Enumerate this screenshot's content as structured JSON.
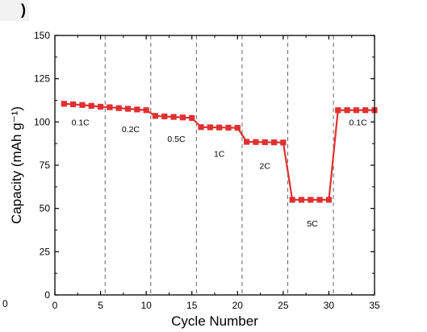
{
  "top_left_glyph": ")",
  "stray_label": "0",
  "chart_data": {
    "type": "line",
    "xlabel": "Cycle Number",
    "ylabel": "Capacity (mAh g⁻¹)",
    "xlim": [
      0,
      35
    ],
    "ylim": [
      0,
      150
    ],
    "xticks": [
      0,
      5,
      10,
      15,
      20,
      25,
      30,
      35
    ],
    "yticks": [
      0,
      25,
      50,
      75,
      100,
      125,
      150
    ],
    "grid": false,
    "dividers_at_x": [
      5.5,
      10.5,
      15.5,
      20.5,
      25.5,
      30.5
    ],
    "series": [
      {
        "color": "#e03030",
        "marker": "square",
        "x": [
          1,
          2,
          3,
          4,
          5,
          6,
          7,
          8,
          9,
          10,
          11,
          12,
          13,
          14,
          15,
          16,
          17,
          18,
          19,
          20,
          21,
          22,
          23,
          24,
          25,
          26,
          27,
          28,
          29,
          30,
          31,
          32,
          33,
          34,
          35
        ],
        "y": [
          110.5,
          110.2,
          109.8,
          109.3,
          108.8,
          108.5,
          108.0,
          107.6,
          107.2,
          106.8,
          103.5,
          103.2,
          102.9,
          102.6,
          102.3,
          97.0,
          96.9,
          96.8,
          96.7,
          96.6,
          88.5,
          88.4,
          88.3,
          88.2,
          88.1,
          55.0,
          55.0,
          55.0,
          55.0,
          55.0,
          106.8,
          106.8,
          106.8,
          106.8,
          106.8
        ]
      }
    ],
    "annotations": [
      {
        "text": "0.1C",
        "x": 2.8,
        "y": 98
      },
      {
        "text": "0.2C",
        "x": 8.3,
        "y": 94
      },
      {
        "text": "0.5C",
        "x": 13.3,
        "y": 88.5
      },
      {
        "text": "1C",
        "x": 18.0,
        "y": 80
      },
      {
        "text": "2C",
        "x": 23.0,
        "y": 73
      },
      {
        "text": "5C",
        "x": 28.2,
        "y": 39.5
      },
      {
        "text": "0.1C",
        "x": 33.2,
        "y": 98
      }
    ]
  }
}
